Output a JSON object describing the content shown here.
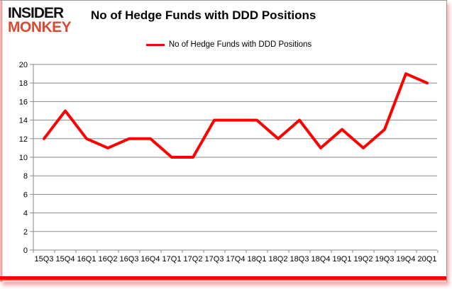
{
  "logo": {
    "line1": "INSIDER",
    "line2": "MONKEY",
    "line1_color": "#111111",
    "line2_color": "#d94a31"
  },
  "header": {
    "title": "No of Hedge Funds with DDD Positions"
  },
  "legend": {
    "label": "No of Hedge Funds with DDD Positions",
    "swatch_color": "#ff0000",
    "position": "top"
  },
  "chart_data": {
    "type": "line",
    "title": "No of Hedge Funds with DDD Positions",
    "categories": [
      "15Q3",
      "15Q4",
      "16Q1",
      "16Q2",
      "16Q3",
      "16Q4",
      "17Q1",
      "17Q2",
      "17Q3",
      "17Q4",
      "18Q1",
      "18Q2",
      "18Q3",
      "18Q4",
      "19Q1",
      "19Q2",
      "19Q3",
      "19Q4",
      "20Q1"
    ],
    "series": [
      {
        "name": "No of Hedge Funds with DDD Positions",
        "values": [
          12,
          15,
          12,
          11,
          12,
          12,
          10,
          10,
          14,
          14,
          14,
          12,
          14,
          11,
          13,
          11,
          13,
          19,
          18
        ]
      }
    ],
    "xlabel": "",
    "ylabel": "",
    "ylim": [
      0,
      20
    ],
    "ytick_step": 2,
    "grid": true,
    "legend_position": "top",
    "line_color": "#ff0000",
    "gridline_color": "#8a8a8a",
    "axis_color": "#8a8a8a",
    "label_color": "#000000"
  }
}
